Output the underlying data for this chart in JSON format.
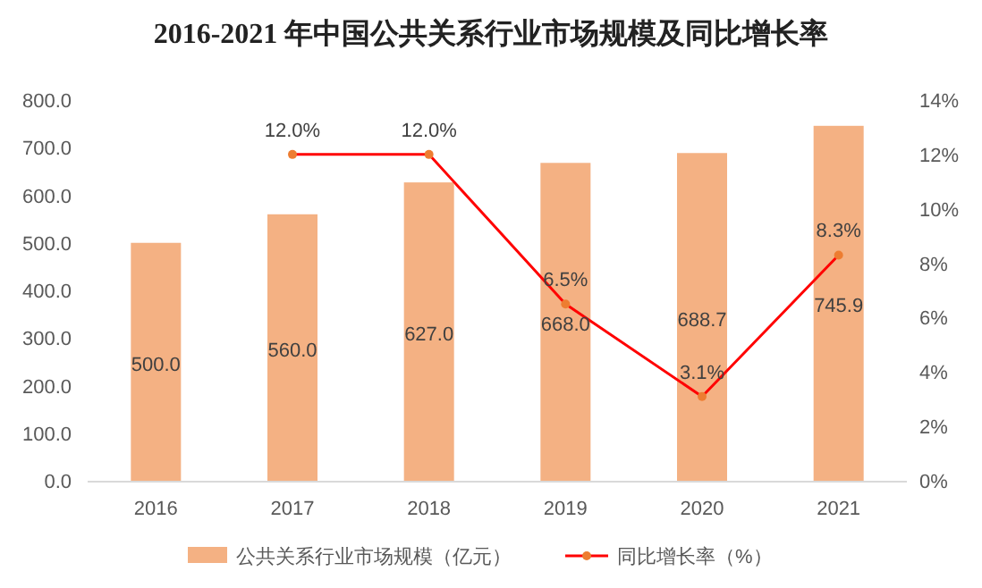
{
  "chart_data": {
    "type": "bar",
    "title": "2016-2021 年中国公共关系行业市场规模及同比增长率",
    "categories": [
      "2016",
      "2017",
      "2018",
      "2019",
      "2020",
      "2021"
    ],
    "series": [
      {
        "name": "公共关系行业市场规模（亿元）",
        "color": "#f4b183",
        "values": [
          500.0,
          560.0,
          627.0,
          668.0,
          688.7,
          745.9
        ],
        "value_labels": [
          "500.0",
          "560.0",
          "627.0",
          "668.0",
          "688.7",
          "745.9"
        ]
      },
      {
        "name": "同比增长率（%）",
        "type": "line",
        "axis": "y2",
        "color": "#ff0000",
        "marker": "circle",
        "values": [
          null,
          12.0,
          12.0,
          6.5,
          3.1,
          8.3
        ],
        "value_labels": [
          null,
          "12.0%",
          "12.0%",
          "6.5%",
          "3.1%",
          "8.3%"
        ]
      }
    ],
    "ylim": [
      0,
      800
    ],
    "yticks": [
      {
        "value": 0,
        "label": "0.0"
      },
      {
        "value": 100,
        "label": "100.0"
      },
      {
        "value": 200,
        "label": "200.0"
      },
      {
        "value": 300,
        "label": "300.0"
      },
      {
        "value": 400,
        "label": "400.0"
      },
      {
        "value": 500,
        "label": "500.0"
      },
      {
        "value": 600,
        "label": "600.0"
      },
      {
        "value": 700,
        "label": "700.0"
      },
      {
        "value": 800,
        "label": "800.0"
      }
    ],
    "y2lim": [
      0,
      14
    ],
    "y2ticks": [
      {
        "value": 0,
        "label": "0%"
      },
      {
        "value": 2,
        "label": "2%"
      },
      {
        "value": 4,
        "label": "4%"
      },
      {
        "value": 6,
        "label": "6%"
      },
      {
        "value": 8,
        "label": "8%"
      },
      {
        "value": 10,
        "label": "10%"
      },
      {
        "value": 12,
        "label": "12%"
      },
      {
        "value": 14,
        "label": "14%"
      }
    ],
    "grid": false,
    "legend": "bottom"
  }
}
